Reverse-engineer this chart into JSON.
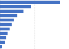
{
  "values": [
    87,
    45,
    34,
    25,
    20,
    17,
    14,
    11,
    9,
    7,
    3
  ],
  "bar_color": "#4472c4",
  "background_color": "#ffffff",
  "grid_color": "#d3d3d3",
  "bar_height": 0.75,
  "xlim": [
    0,
    100
  ],
  "n_bars": 11
}
